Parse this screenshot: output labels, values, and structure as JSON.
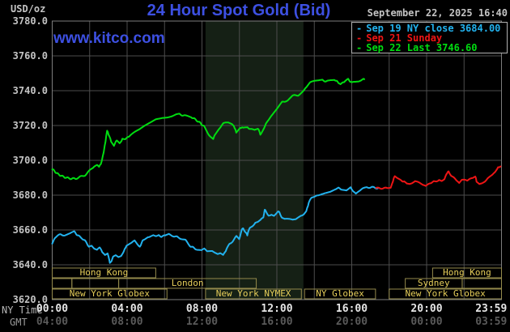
{
  "header": {
    "unit": "USD/oz",
    "title": "24 Hour Spot Gold (Bid)",
    "datetime": "September 22, 2025 16:40",
    "watermark": "www.kitco.com"
  },
  "legend": [
    {
      "label": "Sep 19 NY close 3684.00",
      "color": "#22b2ee"
    },
    {
      "label": "Sep 21 Sunday",
      "color": "#ee1515"
    },
    {
      "label": "Sep 22 Last 3746.60",
      "color": "#00dd11"
    }
  ],
  "axes": {
    "ny_time_label": "NY Time",
    "gmt_label": "GMT",
    "y_ticks": [
      {
        "v": 3780,
        "label": "3780.0"
      },
      {
        "v": 3760,
        "label": "3760.0"
      },
      {
        "v": 3740,
        "label": "3740.0"
      },
      {
        "v": 3720,
        "label": "3720.0"
      },
      {
        "v": 3700,
        "label": "3700.0"
      },
      {
        "v": 3680,
        "label": "3680.0"
      },
      {
        "v": 3660,
        "label": "3660.0"
      },
      {
        "v": 3640,
        "label": "3640.0"
      },
      {
        "v": 3620,
        "label": "3620.0"
      }
    ],
    "x_ny_ticks": [
      {
        "t": 0,
        "label": "00:00"
      },
      {
        "t": 4,
        "label": "04:00"
      },
      {
        "t": 8,
        "label": "08:00"
      },
      {
        "t": 12,
        "label": "12:00"
      },
      {
        "t": 16,
        "label": "16:00"
      },
      {
        "t": 20,
        "label": "20:00"
      },
      {
        "t": 23.45,
        "label": "23:59"
      }
    ],
    "x_gmt_ticks": [
      {
        "t": 0,
        "label": "04:00"
      },
      {
        "t": 4,
        "label": "08:00"
      },
      {
        "t": 8,
        "label": "12:00"
      },
      {
        "t": 12,
        "label": "16:00"
      },
      {
        "t": 16,
        "label": "20:00"
      },
      {
        "t": 20,
        "label": "00:00"
      },
      {
        "t": 23.45,
        "label": "03:59"
      }
    ]
  },
  "sessions": {
    "rows": [
      {
        "y": 331,
        "boxes": [
          {
            "t0": 0,
            "t1": 5.53,
            "label": "Hong Kong"
          },
          {
            "t0": 20.32,
            "t1": 24,
            "label": "Hong Kong"
          }
        ]
      },
      {
        "y": 344,
        "boxes": [
          {
            "t0": 0,
            "t1": 1.05,
            "label": ""
          },
          {
            "t0": 1.05,
            "t1": 3.55,
            "label": ""
          },
          {
            "t0": 3.55,
            "t1": 10.9,
            "label": "London"
          },
          {
            "t0": 18.86,
            "t1": 21.9,
            "label": "Sydney"
          },
          {
            "t0": 21.9,
            "t1": 24,
            "label": ""
          }
        ]
      },
      {
        "y": 357,
        "boxes": [
          {
            "t0": 0,
            "t1": 6.13,
            "label": "New York Globex"
          },
          {
            "t0": 8.19,
            "t1": 13.31,
            "label": "New York NYMEX"
          },
          {
            "t0": 13.48,
            "t1": 17.27,
            "label": "NY Globex"
          },
          {
            "t0": 18.0,
            "t1": 24,
            "label": "New York Globex"
          }
        ]
      }
    ]
  },
  "chart_data": {
    "type": "line",
    "title": "24 Hour Spot Gold (Bid)",
    "xlabel": "NY Time (hours)",
    "ylabel": "USD/oz",
    "xlim": [
      0,
      24
    ],
    "ylim": [
      3620,
      3780
    ],
    "grid": true,
    "grid_x_step_hours": 2,
    "grid_y_step": 20,
    "shaded_region": {
      "t0": 8.19,
      "t1": 13.42,
      "color": "#152015",
      "meaning": "New York NYMEX session"
    },
    "series": [
      {
        "name": "Sep 19 NY close 3684.00",
        "color": "#22b2ee",
        "points": [
          [
            0,
            3652.5
          ],
          [
            0.2,
            3656
          ],
          [
            0.45,
            3657.5
          ],
          [
            0.67,
            3657
          ],
          [
            0.9,
            3658
          ],
          [
            1.17,
            3659
          ],
          [
            1.38,
            3656.7
          ],
          [
            1.6,
            3655.2
          ],
          [
            1.82,
            3652.9
          ],
          [
            1.96,
            3650.6
          ],
          [
            2.1,
            3651.3
          ],
          [
            2.25,
            3649
          ],
          [
            2.39,
            3648.2
          ],
          [
            2.53,
            3649.8
          ],
          [
            2.67,
            3647.4
          ],
          [
            2.82,
            3645.9
          ],
          [
            2.96,
            3646.7
          ],
          [
            3.08,
            3641.3
          ],
          [
            3.17,
            3642.4
          ],
          [
            3.25,
            3645.1
          ],
          [
            3.39,
            3645.9
          ],
          [
            3.54,
            3644.8
          ],
          [
            3.68,
            3645.4
          ],
          [
            3.82,
            3647.4
          ],
          [
            3.97,
            3651.3
          ],
          [
            4.11,
            3652.1
          ],
          [
            4.25,
            3652.9
          ],
          [
            4.4,
            3653.6
          ],
          [
            4.54,
            3652.1
          ],
          [
            4.68,
            3650.6
          ],
          [
            4.83,
            3653.6
          ],
          [
            4.97,
            3654.4
          ],
          [
            5.11,
            3655.6
          ],
          [
            5.26,
            3656.7
          ],
          [
            5.4,
            3657.4
          ],
          [
            5.54,
            3656.7
          ],
          [
            5.69,
            3657.4
          ],
          [
            5.83,
            3656.2
          ],
          [
            6.04,
            3656.7
          ],
          [
            6.23,
            3657.4
          ],
          [
            6.5,
            3656.5
          ],
          [
            6.8,
            3655.5
          ],
          [
            7.12,
            3654
          ],
          [
            7.4,
            3650.5
          ],
          [
            7.7,
            3649
          ],
          [
            7.98,
            3648.2
          ],
          [
            8.12,
            3649.5
          ],
          [
            8.27,
            3647.5
          ],
          [
            8.55,
            3647.5
          ],
          [
            8.7,
            3646.5
          ],
          [
            8.84,
            3646
          ],
          [
            8.98,
            3646.5
          ],
          [
            9.13,
            3645.5
          ],
          [
            9.27,
            3647.5
          ],
          [
            9.34,
            3649.5
          ],
          [
            9.48,
            3652
          ],
          [
            9.63,
            3653.5
          ],
          [
            9.77,
            3655.5
          ],
          [
            9.84,
            3657
          ],
          [
            9.99,
            3655
          ],
          [
            10.13,
            3660
          ],
          [
            10.2,
            3661
          ],
          [
            10.34,
            3658.5
          ],
          [
            10.42,
            3657
          ],
          [
            10.56,
            3661.5
          ],
          [
            10.7,
            3662.5
          ],
          [
            10.85,
            3664
          ],
          [
            10.99,
            3664.5
          ],
          [
            11.13,
            3665.5
          ],
          [
            11.28,
            3667.5
          ],
          [
            11.35,
            3672
          ],
          [
            11.42,
            3670.5
          ],
          [
            11.56,
            3668.5
          ],
          [
            11.71,
            3669
          ],
          [
            11.85,
            3668.5
          ],
          [
            12.06,
            3670.5
          ],
          [
            12.14,
            3670
          ],
          [
            12.28,
            3667
          ],
          [
            12.42,
            3666
          ],
          [
            12.57,
            3666.5
          ],
          [
            12.71,
            3666
          ],
          [
            12.85,
            3665.5
          ],
          [
            13,
            3666
          ],
          [
            13.14,
            3667.5
          ],
          [
            13.28,
            3668.5
          ],
          [
            13.43,
            3669
          ],
          [
            13.57,
            3670.5
          ],
          [
            13.71,
            3676
          ],
          [
            13.86,
            3678.5
          ],
          [
            14,
            3679
          ],
          [
            14.14,
            3680
          ],
          [
            14.29,
            3680.5
          ],
          [
            14.57,
            3681.5
          ],
          [
            14.86,
            3682
          ],
          [
            15.15,
            3683
          ],
          [
            15.29,
            3684
          ],
          [
            15.43,
            3683
          ],
          [
            15.72,
            3682.5
          ],
          [
            15.94,
            3684.5
          ],
          [
            16.22,
            3680.5
          ],
          [
            16.45,
            3682.5
          ],
          [
            16.58,
            3683.5
          ],
          [
            16.8,
            3684.5
          ],
          [
            17.1,
            3684.5
          ],
          [
            17.4,
            3684
          ]
        ]
      },
      {
        "name": "Sep 21 Sunday",
        "color": "#ee1515",
        "points": [
          [
            17.3,
            3684
          ],
          [
            17.6,
            3684
          ],
          [
            17.9,
            3684
          ],
          [
            18.08,
            3684.5
          ],
          [
            18.2,
            3688
          ],
          [
            18.3,
            3691
          ],
          [
            18.45,
            3689.5
          ],
          [
            18.59,
            3688.5
          ],
          [
            18.8,
            3688
          ],
          [
            18.95,
            3686.5
          ],
          [
            19.09,
            3686
          ],
          [
            19.23,
            3686.5
          ],
          [
            19.38,
            3688.5
          ],
          [
            19.52,
            3688
          ],
          [
            19.66,
            3686.5
          ],
          [
            19.81,
            3685.5
          ],
          [
            19.95,
            3685
          ],
          [
            20.09,
            3686
          ],
          [
            20.24,
            3687
          ],
          [
            20.38,
            3688.5
          ],
          [
            20.52,
            3688
          ],
          [
            20.67,
            3689
          ],
          [
            20.81,
            3688.5
          ],
          [
            20.95,
            3689.5
          ],
          [
            21.1,
            3692.5
          ],
          [
            21.17,
            3693.5
          ],
          [
            21.31,
            3691.5
          ],
          [
            21.45,
            3690
          ],
          [
            21.6,
            3688
          ],
          [
            21.74,
            3687
          ],
          [
            21.88,
            3688.5
          ],
          [
            22.03,
            3688.5
          ],
          [
            22.17,
            3688
          ],
          [
            22.31,
            3689
          ],
          [
            22.46,
            3690
          ],
          [
            22.6,
            3691
          ],
          [
            22.67,
            3688
          ],
          [
            22.82,
            3686.5
          ],
          [
            22.96,
            3687
          ],
          [
            23.1,
            3688
          ],
          [
            23.25,
            3689.5
          ],
          [
            23.39,
            3690.5
          ],
          [
            23.53,
            3691.5
          ],
          [
            23.68,
            3694
          ],
          [
            23.82,
            3696
          ],
          [
            23.95,
            3696.5
          ]
        ]
      },
      {
        "name": "Sep 22 Last 3746.60",
        "color": "#00dd11",
        "points": [
          [
            0,
            3695
          ],
          [
            0.25,
            3692.5
          ],
          [
            0.5,
            3691
          ],
          [
            0.75,
            3690
          ],
          [
            1,
            3689.5
          ],
          [
            1.25,
            3689.5
          ],
          [
            1.5,
            3690.5
          ],
          [
            1.75,
            3691.5
          ],
          [
            1.95,
            3693.5
          ],
          [
            2.1,
            3695.5
          ],
          [
            2.25,
            3696.5
          ],
          [
            2.4,
            3697
          ],
          [
            2.5,
            3696
          ],
          [
            2.6,
            3698
          ],
          [
            2.7,
            3702
          ],
          [
            2.8,
            3708
          ],
          [
            2.93,
            3717
          ],
          [
            3.05,
            3714
          ],
          [
            3.15,
            3710.5
          ],
          [
            3.3,
            3708.5
          ],
          [
            3.45,
            3711.5
          ],
          [
            3.6,
            3709.5
          ],
          [
            3.75,
            3712.5
          ],
          [
            3.9,
            3712
          ],
          [
            4.1,
            3713.5
          ],
          [
            4.4,
            3716
          ],
          [
            4.7,
            3718.5
          ],
          [
            4.97,
            3720.5
          ],
          [
            5.25,
            3722
          ],
          [
            5.53,
            3723.5
          ],
          [
            5.9,
            3724.5
          ],
          [
            6.4,
            3725.5
          ],
          [
            6.8,
            3726.5
          ],
          [
            7.1,
            3725.5
          ],
          [
            7.42,
            3725
          ],
          [
            7.85,
            3722
          ],
          [
            8.1,
            3719.5
          ],
          [
            8.3,
            3716
          ],
          [
            8.49,
            3713
          ],
          [
            8.6,
            3712.5
          ],
          [
            8.67,
            3714
          ],
          [
            8.84,
            3716.5
          ],
          [
            9,
            3719
          ],
          [
            9.14,
            3721
          ],
          [
            9.4,
            3722
          ],
          [
            9.6,
            3721
          ],
          [
            9.7,
            3720
          ],
          [
            9.83,
            3716
          ],
          [
            10.04,
            3719
          ],
          [
            10.2,
            3718.5
          ],
          [
            10.43,
            3719
          ],
          [
            10.69,
            3717.5
          ],
          [
            10.85,
            3718
          ],
          [
            10.99,
            3718.5
          ],
          [
            11.12,
            3715
          ],
          [
            11.28,
            3718
          ],
          [
            11.42,
            3721
          ],
          [
            11.72,
            3725.5
          ],
          [
            11.98,
            3729
          ],
          [
            12.28,
            3733.5
          ],
          [
            12.58,
            3734.5
          ],
          [
            12.84,
            3737
          ],
          [
            13.14,
            3737.5
          ],
          [
            13.44,
            3740
          ],
          [
            13.6,
            3742
          ],
          [
            13.78,
            3744.5
          ],
          [
            14,
            3745.5
          ],
          [
            14.2,
            3745.5
          ],
          [
            14.43,
            3746
          ],
          [
            14.6,
            3745.5
          ],
          [
            14.77,
            3745.5
          ],
          [
            15.08,
            3746.5
          ],
          [
            15.29,
            3744.5
          ],
          [
            15.4,
            3743.5
          ],
          [
            15.6,
            3745
          ],
          [
            15.81,
            3746.5
          ],
          [
            16.02,
            3744.5
          ],
          [
            16.28,
            3745.5
          ],
          [
            16.5,
            3746
          ],
          [
            16.67,
            3746.6
          ]
        ]
      }
    ]
  },
  "colors": {
    "background": "#000000",
    "grid": "#4d4d4d",
    "plot_border": "#7d7d7d",
    "session_border": "#948a4c",
    "session_label": "#e6ce5a",
    "title_blue": "#3d50e2",
    "axis_text": "#c4c4c4",
    "ny_tick_text": "#e6e6e6",
    "gmt_tick_text": "#5a5a5a"
  }
}
